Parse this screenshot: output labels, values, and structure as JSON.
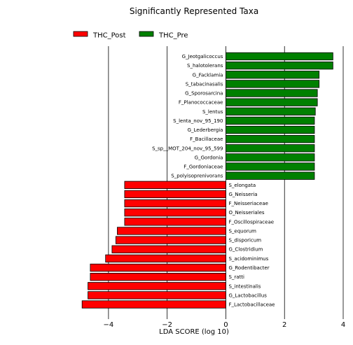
{
  "chart_data": {
    "type": "bar",
    "orientation": "horizontal",
    "title": "Significantly Represented Taxa",
    "xlabel": "LDA SCORE (log 10)",
    "ylabel": "",
    "xlim": [
      -5.0,
      4.0
    ],
    "xticks": [
      -4,
      -2,
      0,
      2,
      4
    ],
    "xtick_labels": [
      "−4",
      "−2",
      "0",
      "2",
      "4"
    ],
    "grid": "vertical lines at x ticks",
    "legend_position": "top-left",
    "series": [
      {
        "name": "THC_Post",
        "color": "#ff0000"
      },
      {
        "name": "THC_Pre",
        "color": "#008000"
      }
    ],
    "bars": [
      {
        "label": "G_Jeotgalicoccus",
        "value": 3.65,
        "group": "THC_Pre"
      },
      {
        "label": "S_halotolerans",
        "value": 3.65,
        "group": "THC_Pre"
      },
      {
        "label": "G_Facklamia",
        "value": 3.18,
        "group": "THC_Pre"
      },
      {
        "label": "S_tabacinasalis",
        "value": 3.18,
        "group": "THC_Pre"
      },
      {
        "label": "G_Sporosarcina",
        "value": 3.12,
        "group": "THC_Pre"
      },
      {
        "label": "F_Planococcaceae",
        "value": 3.12,
        "group": "THC_Pre"
      },
      {
        "label": "S_lentus",
        "value": 3.05,
        "group": "THC_Pre"
      },
      {
        "label": "S_lenta_nov_95_190",
        "value": 3.02,
        "group": "THC_Pre"
      },
      {
        "label": "G_Lederbergia",
        "value": 3.02,
        "group": "THC_Pre"
      },
      {
        "label": "F_Bacillaceae",
        "value": 3.02,
        "group": "THC_Pre"
      },
      {
        "label": "S_sp__MOT_204_nov_95_599",
        "value": 3.02,
        "group": "THC_Pre"
      },
      {
        "label": "G_Gordonia",
        "value": 3.02,
        "group": "THC_Pre"
      },
      {
        "label": "F_Gordoniaceae",
        "value": 3.02,
        "group": "THC_Pre"
      },
      {
        "label": "S_polyisoprenivorans",
        "value": 3.02,
        "group": "THC_Pre"
      },
      {
        "label": "S_elongata",
        "value": -3.45,
        "group": "THC_Post"
      },
      {
        "label": "G_Neisseria",
        "value": -3.45,
        "group": "THC_Post"
      },
      {
        "label": "F_Neisseriaceae",
        "value": -3.45,
        "group": "THC_Post"
      },
      {
        "label": "O_Neisseriales",
        "value": -3.45,
        "group": "THC_Post"
      },
      {
        "label": "F_Oscillospiraceae",
        "value": -3.45,
        "group": "THC_Post"
      },
      {
        "label": "S_equorum",
        "value": -3.7,
        "group": "THC_Post"
      },
      {
        "label": "S_disporicum",
        "value": -3.75,
        "group": "THC_Post"
      },
      {
        "label": "G_Clostridium",
        "value": -3.88,
        "group": "THC_Post"
      },
      {
        "label": "S_acidominimus",
        "value": -4.1,
        "group": "THC_Post"
      },
      {
        "label": "G_Rodentibacter",
        "value": -4.62,
        "group": "THC_Post"
      },
      {
        "label": "S_ratti",
        "value": -4.62,
        "group": "THC_Post"
      },
      {
        "label": "S_intestinalis",
        "value": -4.7,
        "group": "THC_Post"
      },
      {
        "label": "G_Lactobacillus",
        "value": -4.7,
        "group": "THC_Post"
      },
      {
        "label": "F_Lactobacillaceae",
        "value": -4.9,
        "group": "THC_Post"
      }
    ]
  }
}
